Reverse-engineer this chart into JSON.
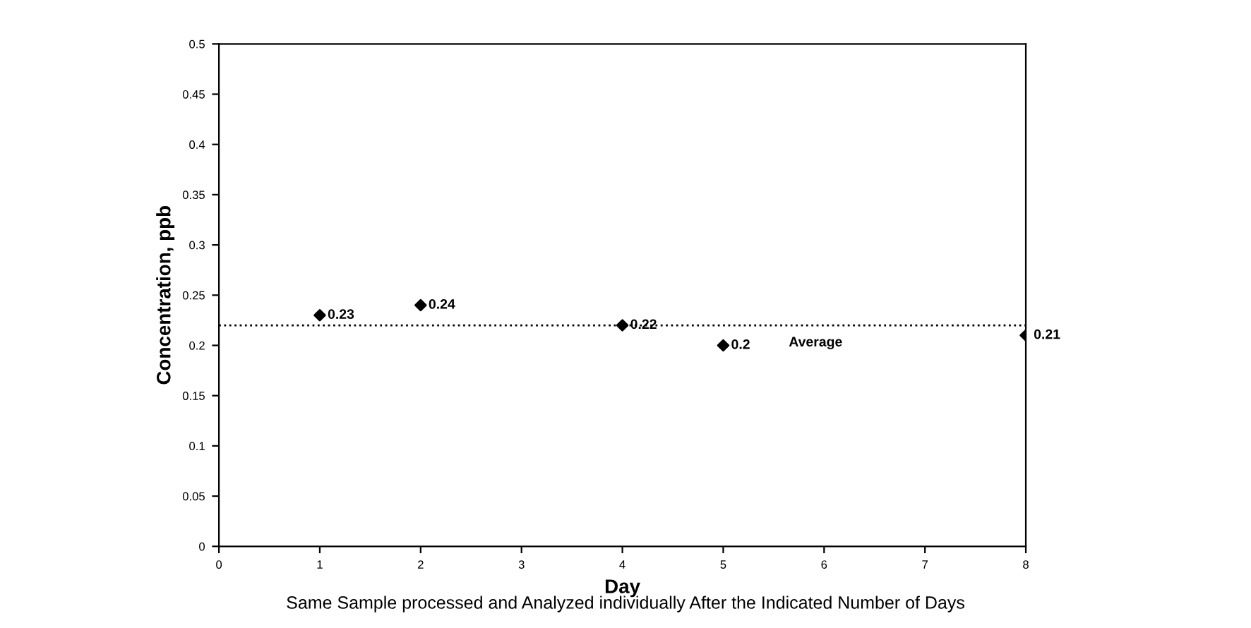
{
  "chart_data": {
    "type": "scatter",
    "xlabel": "Day",
    "ylabel": "Concentration, ppb",
    "x": [
      1,
      2,
      4,
      5,
      8
    ],
    "values": [
      0.23,
      0.24,
      0.22,
      0.2,
      0.21
    ],
    "color": "#000000",
    "marker": "diamond",
    "data_labels": true,
    "xlim": [
      0,
      8
    ],
    "xticks": [
      0,
      1,
      2,
      3,
      4,
      5,
      6,
      7,
      8
    ],
    "ylim": [
      0,
      0.5
    ],
    "yticks": [
      0,
      0.05,
      0.1,
      0.15,
      0.2,
      0.25,
      0.3,
      0.35,
      0.4,
      0.45,
      0.5
    ],
    "ref_lines": [
      {
        "axis": "y",
        "value": 0.22,
        "label": "Average",
        "line_style": "dotted",
        "color": "#000000"
      }
    ],
    "grid": false,
    "legend": false,
    "annotations": [
      "Same Sample processed and Analyzed individually After the Indicated Number of Days"
    ]
  }
}
